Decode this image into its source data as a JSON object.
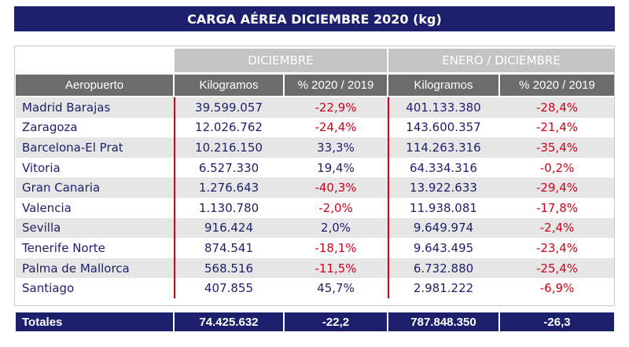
{
  "title": "CARGA AÉREA DICIEMBRE 2020 (kg)",
  "table": {
    "group_headers": [
      "DICIEMBRE",
      "ENERO / DICIEMBRE"
    ],
    "headers": [
      "Aeropuerto",
      "Kilogramos",
      "% 2020 / 2019",
      "Kilogramos",
      "% 2020 / 2019"
    ],
    "rows": [
      [
        "Madrid Barajas",
        "39.599.057",
        "-22,9%",
        "401.133.380",
        "-28,4%"
      ],
      [
        "Zaragoza",
        "12.026.762",
        "-24,4%",
        "143.600.357",
        "-21,4%"
      ],
      [
        "Barcelona-El Prat",
        "10.216.150",
        "33,3%",
        "114.263.316",
        "-35,4%"
      ],
      [
        "Vitoria",
        "6.527.330",
        "19,4%",
        "64.334.316",
        "-0,2%"
      ],
      [
        "Gran Canaria",
        "1.276.643",
        "-40,3%",
        "13.922.633",
        "-29,4%"
      ],
      [
        "Valencia",
        "1.130.780",
        "-2,0%",
        "11.938.081",
        "-17,8%"
      ],
      [
        "Sevilla",
        "916.424",
        "2,0%",
        "9.649.974",
        "-2,4%"
      ],
      [
        "Tenerife Norte",
        "874.541",
        "-18,1%",
        "9.643.495",
        "-23,4%"
      ],
      [
        "Palma de Mallorca",
        "568.516",
        "-11,5%",
        "6.732.880",
        "-25,4%"
      ],
      [
        "Santiago",
        "407.855",
        "45,7%",
        "2.981.222",
        "-6,9%"
      ]
    ],
    "totals": [
      "Totales",
      "74.425.632",
      "-22,2",
      "787.848.350",
      "-26,3"
    ]
  }
}
